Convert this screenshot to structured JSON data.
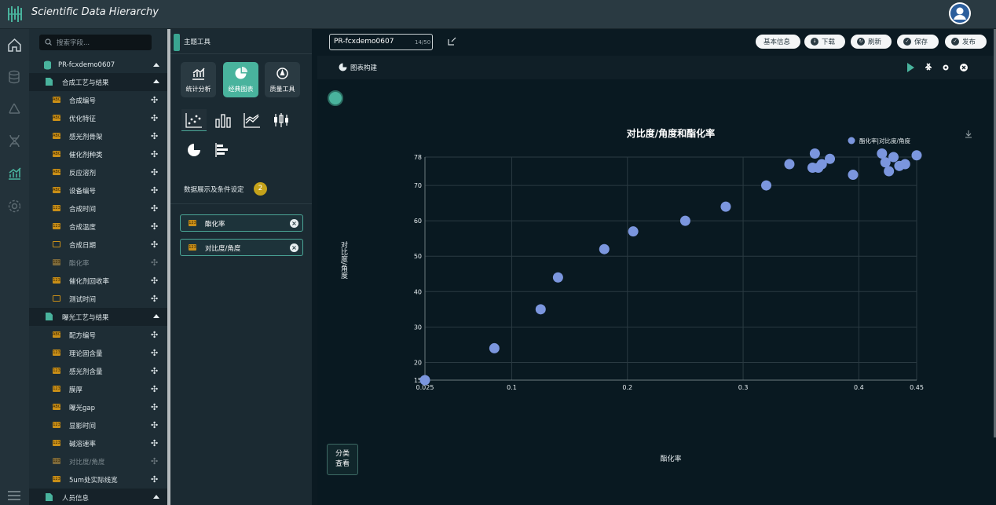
{
  "app": {
    "title": "Scientific Data Hierarchy"
  },
  "tree": {
    "search_placeholder": "搜索字段...",
    "project": "PR-fcxdemo0607",
    "groups": [
      {
        "label": "合成工艺与结果",
        "items": [
          "合成编号",
          "优化特征",
          "感光剂骨架",
          "催化剂种类",
          "反应溶剂",
          "设备编号",
          "合成时间",
          "合成温度",
          "合成日期",
          "酯化率",
          "催化剂回收率",
          "测试时间"
        ]
      },
      {
        "label": "曝光工艺与结果",
        "items": [
          "配方编号",
          "理论固含量",
          "感光剂含量",
          "膜厚",
          "曝光gap",
          "显影时间",
          "碱溶速率",
          "对比度/角度",
          "5um处实际线宽"
        ]
      },
      {
        "label": "人员信息",
        "items": []
      }
    ]
  },
  "tools": {
    "header": "主题工具",
    "categories": [
      "统计分析",
      "经典图表",
      "质量工具"
    ],
    "conditions_label": "数据展示及条件设定",
    "conditions_count": "2",
    "chips": [
      "酯化率",
      "对比度/角度"
    ]
  },
  "main": {
    "chart_name": "PR-fcxdemo0607",
    "char_count": "14/50",
    "buttons": [
      "基本信息",
      "下载",
      "刷新",
      "保存",
      "发布"
    ],
    "section_label": "图表构建",
    "classify_label_1": "分类",
    "classify_label_2": "查看"
  },
  "chart_data": {
    "type": "scatter",
    "title": "对比度/角度和酯化率",
    "xlabel": "酯化率",
    "ylabel": "对比度/角度",
    "legend": "酯化率|对比度/角度",
    "legend_position": "top-right",
    "xlim": [
      0.025,
      0.45
    ],
    "ylim": [
      15,
      78
    ],
    "x_ticks": [
      0.025,
      0.1,
      0.2,
      0.3,
      0.4,
      0.45
    ],
    "y_ticks": [
      15,
      20,
      30,
      40,
      50,
      60,
      70,
      78
    ],
    "grid": true,
    "color": "#7b96de",
    "points": [
      [
        0.025,
        15
      ],
      [
        0.085,
        24
      ],
      [
        0.125,
        35
      ],
      [
        0.14,
        44
      ],
      [
        0.18,
        52
      ],
      [
        0.205,
        57
      ],
      [
        0.25,
        60
      ],
      [
        0.285,
        64
      ],
      [
        0.32,
        70
      ],
      [
        0.34,
        76
      ],
      [
        0.36,
        75
      ],
      [
        0.362,
        79
      ],
      [
        0.365,
        75
      ],
      [
        0.368,
        76
      ],
      [
        0.375,
        77.5
      ],
      [
        0.395,
        73
      ],
      [
        0.42,
        79
      ],
      [
        0.423,
        76.5
      ],
      [
        0.426,
        74
      ],
      [
        0.43,
        78
      ],
      [
        0.435,
        75.5
      ],
      [
        0.44,
        76
      ],
      [
        0.45,
        78.5
      ]
    ]
  }
}
